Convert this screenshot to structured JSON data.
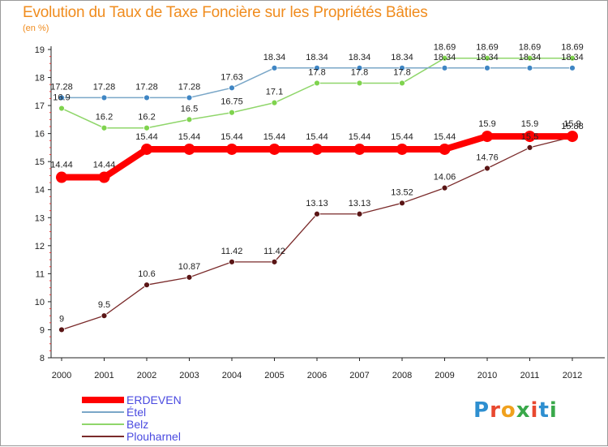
{
  "title": "Evolution du Taux de Taxe Foncière sur les Propriétés Bâties",
  "unit": "(en %)",
  "logo": {
    "text": "Proxiti",
    "colors": [
      "#2e8fd0",
      "#e8482f",
      "#f0a11e",
      "#39a84a",
      "#e8482f",
      "#2e8fd0",
      "#39a84a"
    ]
  },
  "chart_data": {
    "type": "line",
    "title": "Evolution du Taux de Taxe Foncière sur les Propriétés Bâties",
    "ylabel": "(en %)",
    "xlabel": "",
    "categories": [
      "2000",
      "2001",
      "2002",
      "2003",
      "2004",
      "2005",
      "2006",
      "2007",
      "2008",
      "2009",
      "2010",
      "2011",
      "2012"
    ],
    "ylim": [
      8,
      19
    ],
    "yticks": [
      "8",
      "9",
      "10",
      "11",
      "12",
      "13",
      "14",
      "15",
      "16",
      "17",
      "18",
      "19"
    ],
    "series": [
      {
        "name": "ERDEVEN",
        "color": "#ff0000",
        "marker_color": "#ff0000",
        "values": [
          14.44,
          14.44,
          15.44,
          15.44,
          15.44,
          15.44,
          15.44,
          15.44,
          15.44,
          15.44,
          15.9,
          15.9,
          15.9
        ],
        "labels": [
          "14.44",
          "14.44",
          "15.44",
          "15.44",
          "15.44",
          "15.44",
          "15.44",
          "15.44",
          "15.44",
          "15.44",
          "15.9",
          "15.9",
          "15.9"
        ]
      },
      {
        "name": "Étel",
        "color": "#7aa7c8",
        "marker_color": "#3f86c4",
        "values": [
          17.28,
          17.28,
          17.28,
          17.28,
          17.63,
          18.34,
          18.34,
          18.34,
          18.34,
          18.34,
          18.34,
          18.34,
          18.34
        ],
        "labels": [
          "17.28",
          "17.28",
          "17.28",
          "17.28",
          "17.63",
          "18.34",
          "18.34",
          "18.34",
          "18.34",
          "18.34",
          "18.34",
          "18.34",
          "18.34"
        ]
      },
      {
        "name": "Belz",
        "color": "#8fd66a",
        "marker_color": "#7fd34e",
        "values": [
          16.9,
          16.2,
          16.2,
          16.5,
          16.75,
          17.1,
          17.8,
          17.8,
          17.8,
          18.69,
          18.69,
          18.69,
          18.69
        ],
        "labels": [
          "16.9",
          "16.2",
          "16.2",
          "16.5",
          "16.75",
          "17.1",
          "17.8",
          "17.8",
          "17.8",
          "18.69",
          "18.69",
          "18.69",
          "18.69"
        ]
      },
      {
        "name": "Plouharnel",
        "color": "#7a2a2a",
        "marker_color": "#5a1515",
        "values": [
          9,
          9.5,
          10.6,
          10.87,
          11.42,
          11.42,
          13.13,
          13.13,
          13.52,
          14.06,
          14.76,
          15.5,
          15.88
        ],
        "labels": [
          "9",
          "9.5",
          "10.6",
          "10.87",
          "11.42",
          "11.42",
          "13.13",
          "13.13",
          "13.52",
          "14.06",
          "14.76",
          "15.5",
          "15.88"
        ]
      }
    ]
  }
}
